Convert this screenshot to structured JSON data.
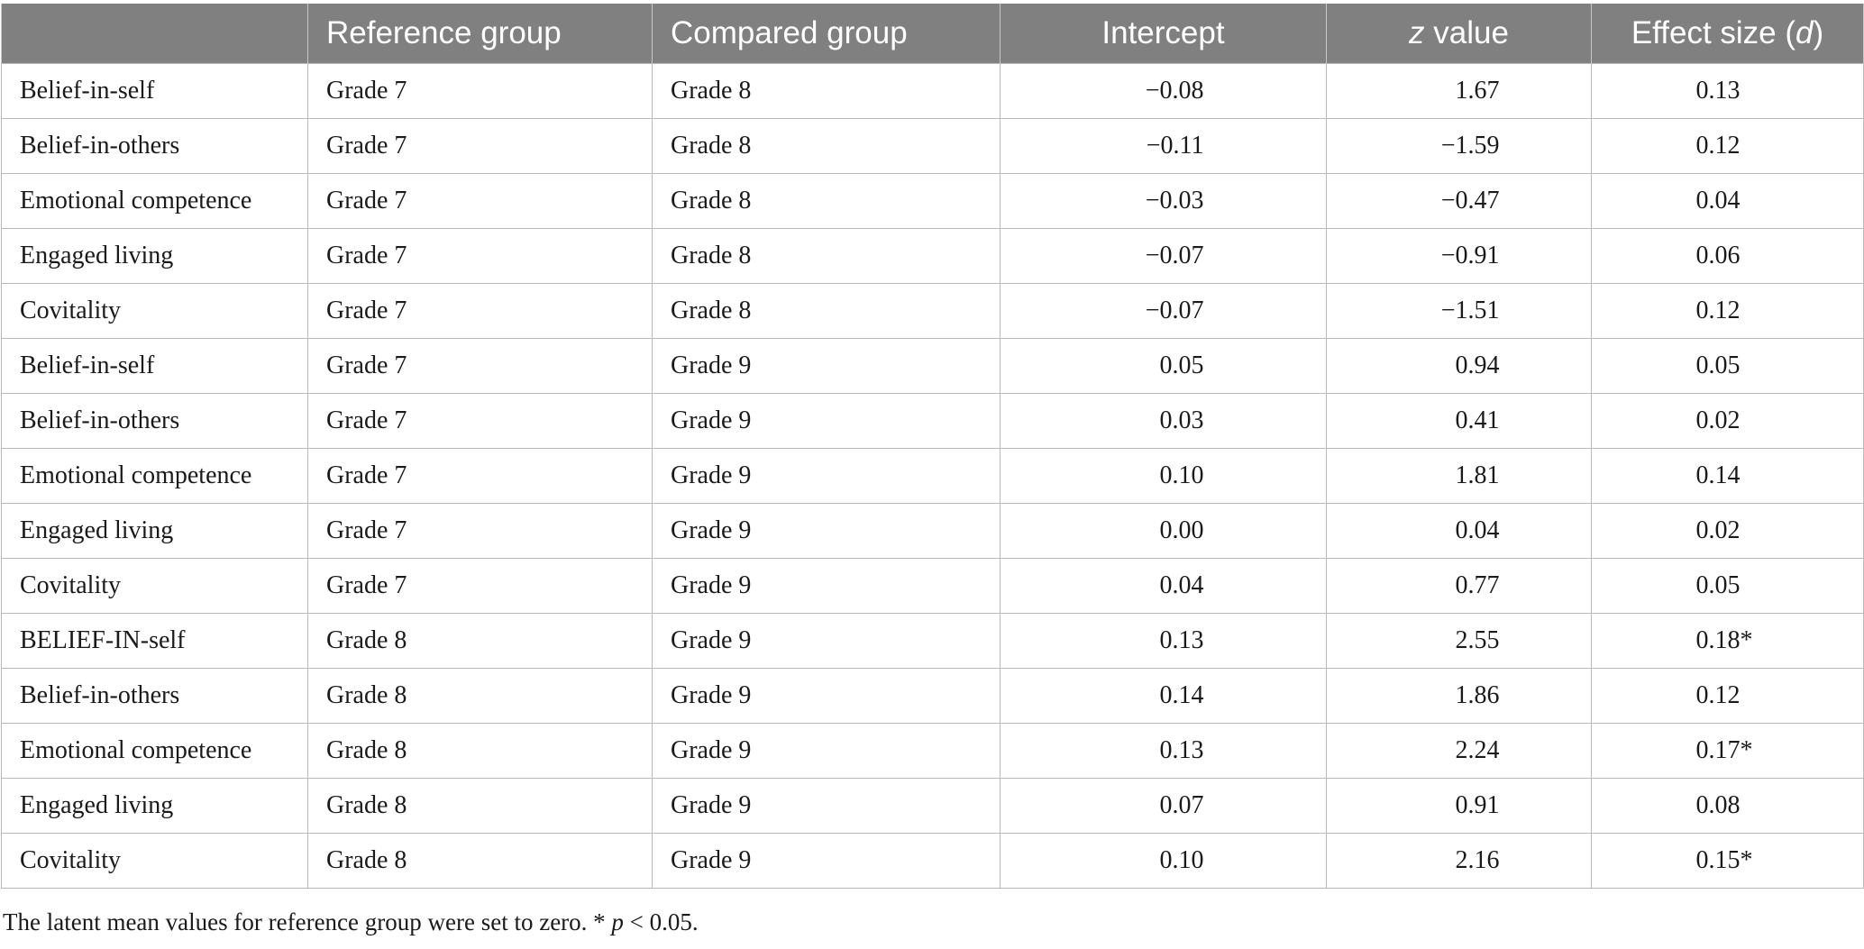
{
  "header": {
    "col1": "",
    "col2": "Reference group",
    "col3": "Compared group",
    "col4": "Intercept",
    "col5_italic": "z",
    "col5_rest": " value",
    "col6_pre": "Effect size (",
    "col6_italic": "d",
    "col6_post": ")"
  },
  "rows": [
    {
      "variable": "Belief-in-self",
      "reference": "Grade 7",
      "compared": "Grade 8",
      "intercept": "−0.08",
      "z": "1.67",
      "effect": "0.13"
    },
    {
      "variable": "Belief-in-others",
      "reference": "Grade 7",
      "compared": "Grade 8",
      "intercept": "−0.11",
      "z": "−1.59",
      "effect": "0.12"
    },
    {
      "variable": "Emotional competence",
      "reference": "Grade 7",
      "compared": "Grade 8",
      "intercept": "−0.03",
      "z": "−0.47",
      "effect": "0.04"
    },
    {
      "variable": "Engaged living",
      "reference": "Grade 7",
      "compared": "Grade 8",
      "intercept": "−0.07",
      "z": "−0.91",
      "effect": "0.06"
    },
    {
      "variable": "Covitality",
      "reference": "Grade 7",
      "compared": "Grade 8",
      "intercept": "−0.07",
      "z": "−1.51",
      "effect": "0.12"
    },
    {
      "variable": "Belief-in-self",
      "reference": "Grade 7",
      "compared": "Grade 9",
      "intercept": "0.05",
      "z": "0.94",
      "effect": "0.05"
    },
    {
      "variable": "Belief-in-others",
      "reference": "Grade 7",
      "compared": "Grade 9",
      "intercept": "0.03",
      "z": "0.41",
      "effect": "0.02"
    },
    {
      "variable": "Emotional competence",
      "reference": "Grade 7",
      "compared": "Grade 9",
      "intercept": "0.10",
      "z": "1.81",
      "effect": "0.14"
    },
    {
      "variable": "Engaged living",
      "reference": "Grade 7",
      "compared": "Grade 9",
      "intercept": "0.00",
      "z": "0.04",
      "effect": "0.02"
    },
    {
      "variable": "Covitality",
      "reference": "Grade 7",
      "compared": "Grade 9",
      "intercept": "0.04",
      "z": "0.77",
      "effect": "0.05"
    },
    {
      "variable": "BELIEF-IN-self",
      "reference": "Grade 8",
      "compared": "Grade 9",
      "intercept": "0.13",
      "z": "2.55",
      "effect": "0.18*"
    },
    {
      "variable": "Belief-in-others",
      "reference": "Grade 8",
      "compared": "Grade 9",
      "intercept": "0.14",
      "z": "1.86",
      "effect": "0.12"
    },
    {
      "variable": "Emotional competence",
      "reference": "Grade 8",
      "compared": "Grade 9",
      "intercept": "0.13",
      "z": "2.24",
      "effect": "0.17*"
    },
    {
      "variable": "Engaged living",
      "reference": "Grade 8",
      "compared": "Grade 9",
      "intercept": "0.07",
      "z": "0.91",
      "effect": "0.08"
    },
    {
      "variable": "Covitality",
      "reference": "Grade 8",
      "compared": "Grade 9",
      "intercept": "0.10",
      "z": "2.16",
      "effect": "0.15*"
    }
  ],
  "footnote": {
    "text": "The latent mean values for reference group were set to zero. * ",
    "p_italic": "p",
    "threshold": " < 0.05."
  }
}
